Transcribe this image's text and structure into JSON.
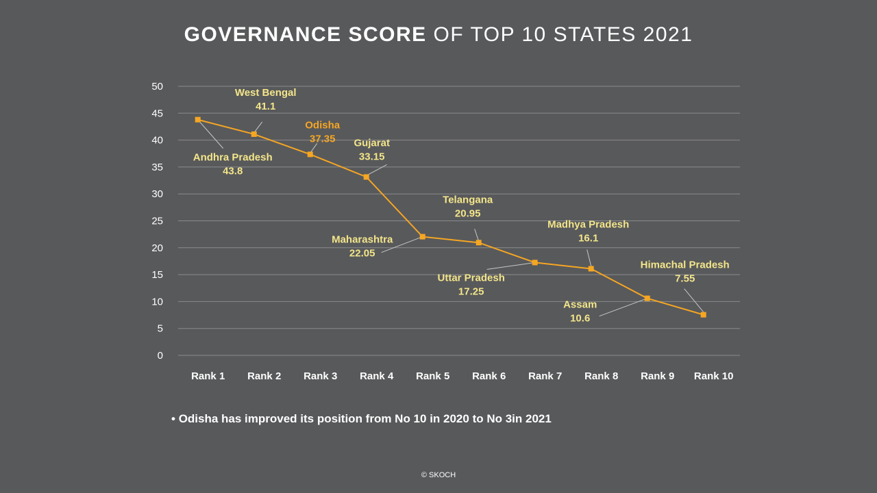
{
  "title": {
    "bold": "GOVERNANCE SCORE",
    "rest": "OF TOP 10 STATES 2021"
  },
  "chart_data": {
    "type": "line",
    "title": "GOVERNANCE SCORE OF TOP 10 STATES 2021",
    "xlabel": "",
    "ylabel": "",
    "ylim": [
      0,
      50
    ],
    "yticks": [
      0,
      5,
      10,
      15,
      20,
      25,
      30,
      35,
      40,
      45,
      50
    ],
    "grid": true,
    "line_color": "#f5a623",
    "label_color": "#f3e58a",
    "highlight_color": "#f5a623",
    "categories": [
      "Rank 1",
      "Rank 2",
      "Rank 3",
      "Rank 4",
      "Rank 5",
      "Rank 6",
      "Rank 7",
      "Rank 8",
      "Rank 9",
      "Rank 10"
    ],
    "series": [
      {
        "values": [
          43.8,
          41.1,
          37.35,
          33.15,
          22.05,
          20.95,
          17.25,
          16.1,
          10.6,
          7.55
        ]
      }
    ],
    "point_labels": [
      {
        "name": "Andhra Pradesh",
        "value": "43.8"
      },
      {
        "name": "West Bengal",
        "value": "41.1"
      },
      {
        "name": "Odisha",
        "value": "37.35",
        "highlight": true
      },
      {
        "name": "Gujarat",
        "value": "33.15"
      },
      {
        "name": "Maharashtra",
        "value": "22.05"
      },
      {
        "name": "Telangana",
        "value": "20.95"
      },
      {
        "name": "Uttar Pradesh",
        "value": "17.25"
      },
      {
        "name": "Madhya Pradesh",
        "value": "16.1"
      },
      {
        "name": "Assam",
        "value": "10.6"
      },
      {
        "name": "Himachal Pradesh",
        "value": "7.55"
      }
    ]
  },
  "note": "Odisha has improved its position from No 10 in 2020 to No 3in 2021",
  "credit": "© SKOCH"
}
